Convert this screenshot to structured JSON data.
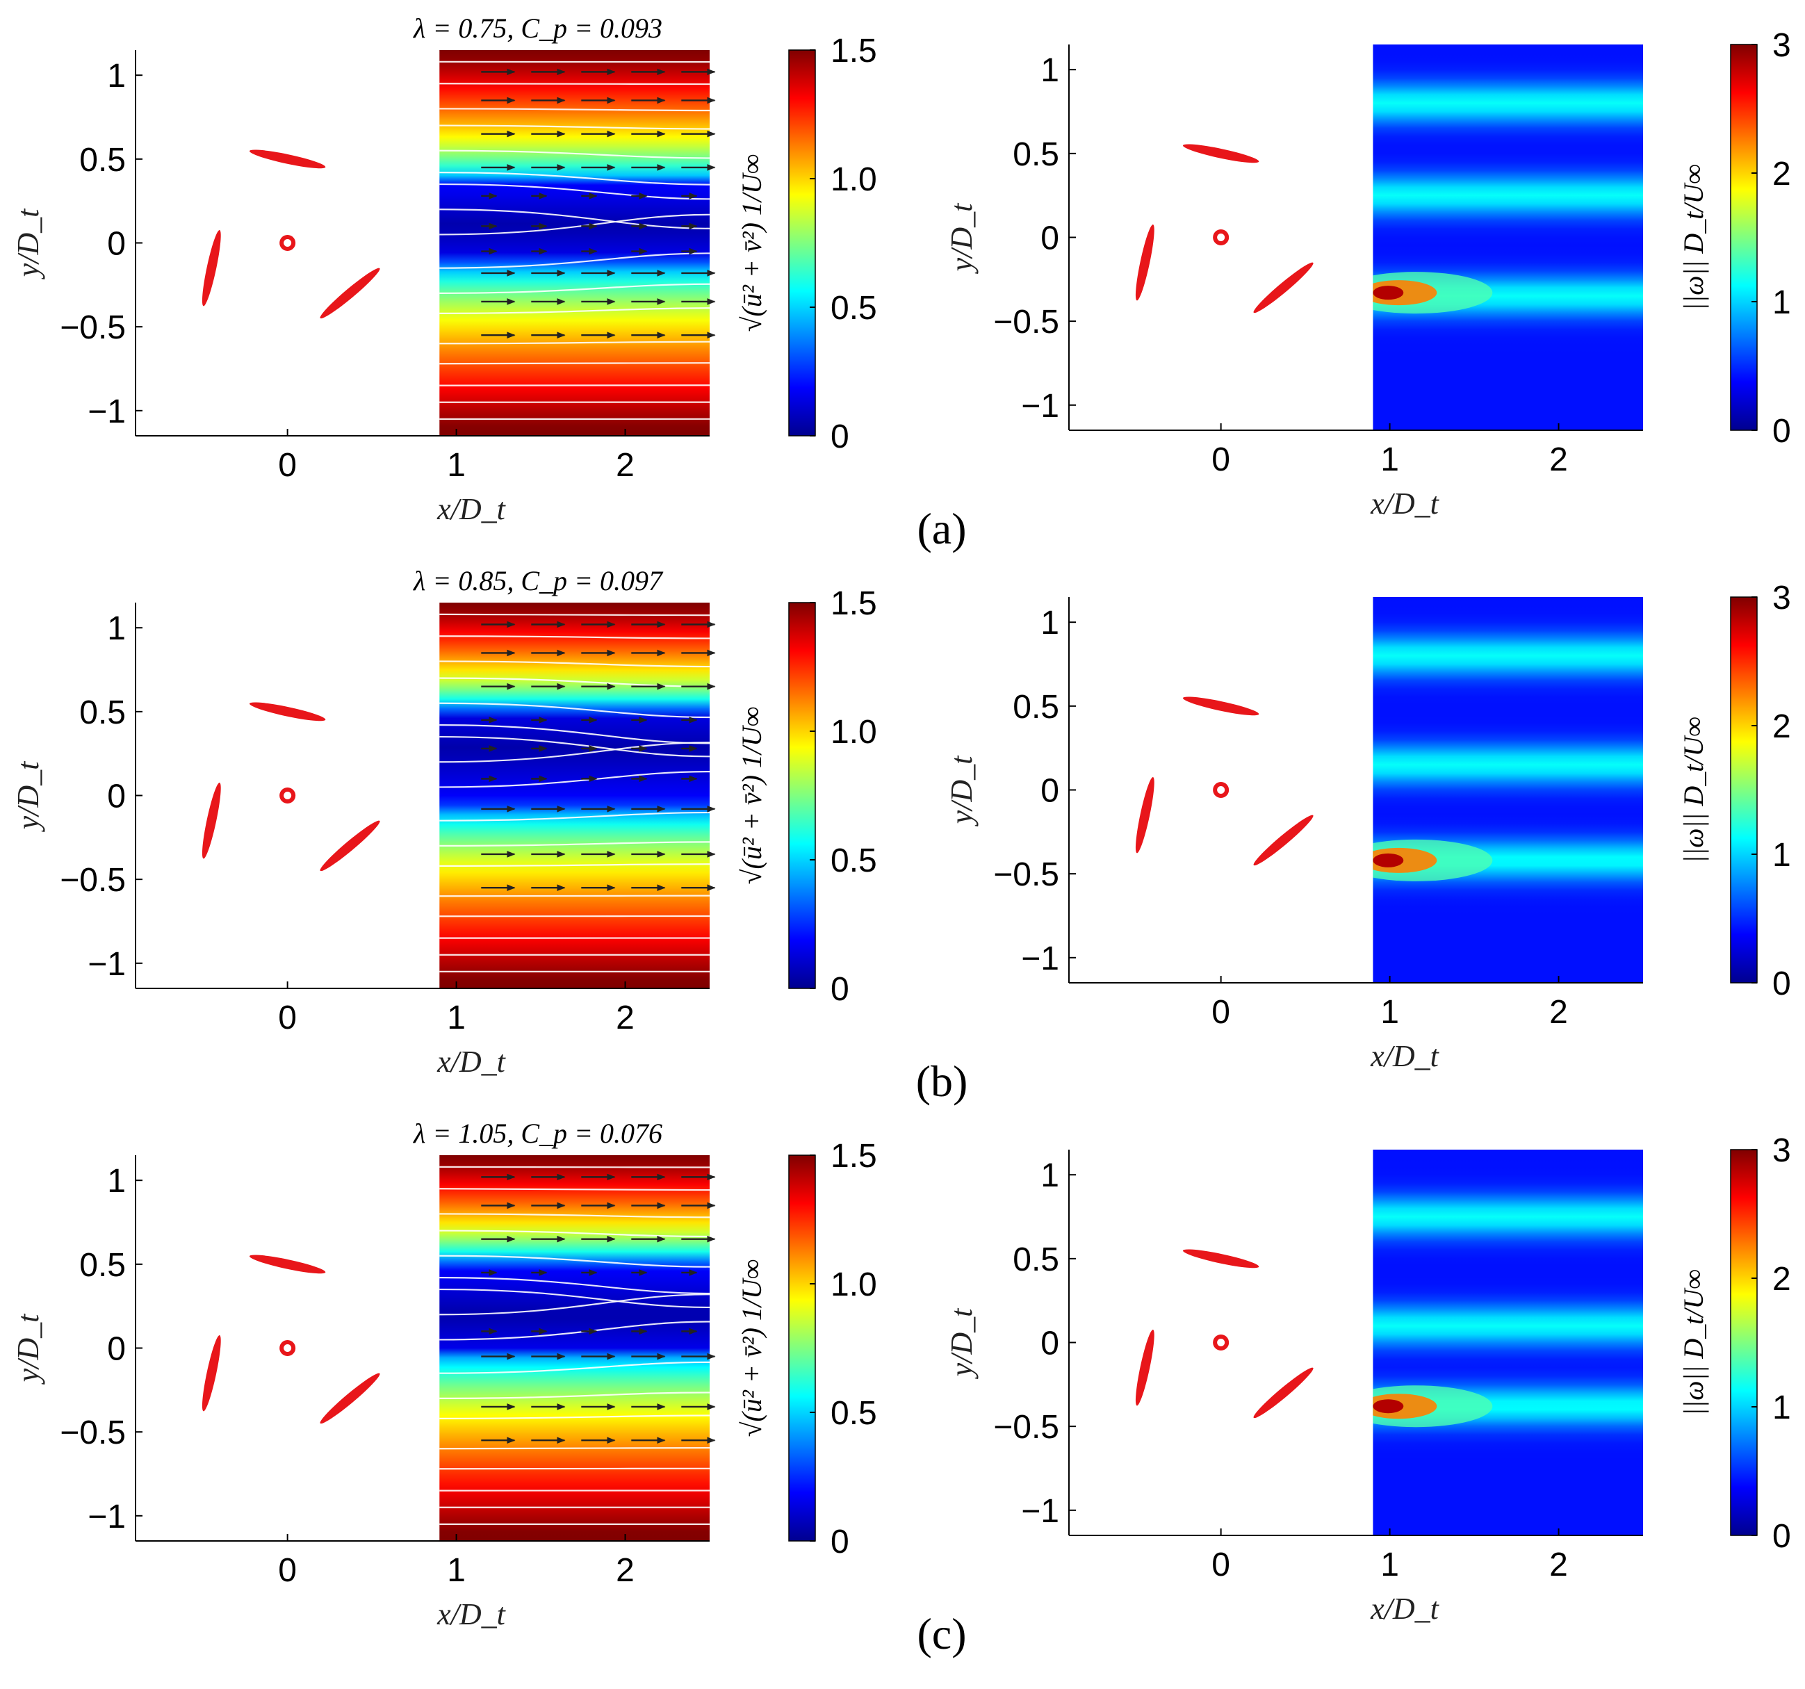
{
  "figure": {
    "rows": [
      {
        "panel_label": "(a)",
        "title": "λ = 0.75, C_p = 0.093",
        "lambda": 0.75,
        "cp": 0.093,
        "velocity": {
          "low_band_y": [
            -0.1,
            0.35
          ],
          "center_y": 0.1,
          "vectors_y": [
            1.02,
            0.85,
            0.65,
            0.45,
            0.28,
            0.1,
            -0.05,
            -0.18,
            -0.35,
            -0.55
          ]
        },
        "vorticity": {
          "hotspot_y": -0.33,
          "shear_y": [
            0.8,
            0.25,
            -0.35
          ]
        }
      },
      {
        "panel_label": "(b)",
        "title": "λ = 0.85, C_p = 0.097",
        "lambda": 0.85,
        "cp": 0.097,
        "velocity": {
          "low_band_y": [
            -0.05,
            0.5
          ],
          "center_y": 0.28,
          "vectors_y": [
            1.02,
            0.85,
            0.65,
            0.45,
            0.28,
            0.1,
            -0.08,
            -0.35,
            -0.55
          ]
        },
        "vorticity": {
          "hotspot_y": -0.42,
          "shear_y": [
            0.8,
            0.15,
            -0.42
          ]
        }
      },
      {
        "panel_label": "(c)",
        "title": "λ = 1.05, C_p = 0.076",
        "lambda": 1.05,
        "cp": 0.076,
        "velocity": {
          "low_band_y": [
            0.0,
            0.5
          ],
          "center_y": 0.2,
          "vectors_y": [
            1.02,
            0.85,
            0.65,
            0.45,
            0.1,
            -0.05,
            -0.35,
            -0.55
          ]
        },
        "vorticity": {
          "hotspot_y": -0.38,
          "shear_y": [
            0.75,
            0.1,
            -0.38
          ]
        }
      }
    ],
    "velocity_axes": {
      "xlabel": "x/D_t",
      "ylabel": "y/D_t",
      "xlim": [
        -0.9,
        2.5
      ],
      "ylim": [
        -1.15,
        1.15
      ],
      "xticks": [
        "0",
        "1",
        "2"
      ],
      "yticks": [
        "1",
        "0.5",
        "0",
        "−0.5",
        "−1"
      ],
      "field_xlim": [
        0.9,
        2.5
      ]
    },
    "vorticity_axes": {
      "xlabel": "x/D_t",
      "ylabel": "y/D_t",
      "xlim": [
        -0.9,
        2.5
      ],
      "ylim": [
        -1.15,
        1.15
      ],
      "xticks": [
        "0",
        "1",
        "2"
      ],
      "yticks": [
        "1",
        "0.5",
        "0",
        "−0.5",
        "−1"
      ],
      "field_xlim": [
        0.9,
        2.5
      ]
    },
    "velocity_colorbar": {
      "label": "√(ū² + v̄²) 1/U∞",
      "ticks": [
        "1.5",
        "1.0",
        "0.5",
        "0"
      ],
      "range": [
        0,
        1.5
      ]
    },
    "vorticity_colorbar": {
      "label": "||ω|| D_t/U∞",
      "ticks": [
        "3",
        "2",
        "1",
        "0"
      ],
      "range": [
        0,
        3
      ]
    },
    "turbine": {
      "blade_color": "#e8161a",
      "hub": {
        "x": 0,
        "y": 0,
        "r": 0.035
      },
      "blades": [
        {
          "x": 0.0,
          "y": 0.5,
          "angle_deg": 12
        },
        {
          "x": -0.45,
          "y": -0.15,
          "angle_deg": 102
        },
        {
          "x": 0.37,
          "y": -0.3,
          "angle_deg": -40
        }
      ]
    },
    "colors": {
      "jet_low": "#00008f",
      "jet_high": "#800000",
      "streamline": "#ffffff",
      "arrow": "#222222"
    }
  },
  "chart_data": [
    {
      "type": "heatmap",
      "title": "λ = 0.75, C_p = 0.093",
      "quantity": "√(ū² + v̄²) 1/U∞",
      "xlabel": "x/D_t",
      "ylabel": "y/D_t",
      "xlim": [
        -0.9,
        2.5
      ],
      "ylim": [
        -1.15,
        1.15
      ],
      "clim": [
        0,
        1.5
      ]
    },
    {
      "type": "heatmap",
      "title": "",
      "quantity": "||ω|| D_t/U∞",
      "xlabel": "x/D_t",
      "ylabel": "y/D_t",
      "xlim": [
        -0.9,
        2.5
      ],
      "ylim": [
        -1.15,
        1.15
      ],
      "clim": [
        0,
        3
      ]
    },
    {
      "type": "heatmap",
      "title": "λ = 0.85, C_p = 0.097",
      "quantity": "√(ū² + v̄²) 1/U∞",
      "xlabel": "x/D_t",
      "ylabel": "y/D_t",
      "xlim": [
        -0.9,
        2.5
      ],
      "ylim": [
        -1.15,
        1.15
      ],
      "clim": [
        0,
        1.5
      ]
    },
    {
      "type": "heatmap",
      "title": "",
      "quantity": "||ω|| D_t/U∞",
      "xlabel": "x/D_t",
      "ylabel": "y/D_t",
      "xlim": [
        -0.9,
        2.5
      ],
      "ylim": [
        -1.15,
        1.15
      ],
      "clim": [
        0,
        3
      ]
    },
    {
      "type": "heatmap",
      "title": "λ = 1.05, C_p = 0.076",
      "quantity": "√(ū² + v̄²) 1/U∞",
      "xlabel": "x/D_t",
      "ylabel": "y/D_t",
      "xlim": [
        -0.9,
        2.5
      ],
      "ylim": [
        -1.15,
        1.15
      ],
      "clim": [
        0,
        1.5
      ]
    },
    {
      "type": "heatmap",
      "title": "",
      "quantity": "||ω|| D_t/U∞",
      "xlabel": "x/D_t",
      "ylabel": "y/D_t",
      "xlim": [
        -0.9,
        2.5
      ],
      "ylim": [
        -1.15,
        1.15
      ],
      "clim": [
        0,
        3
      ]
    }
  ]
}
